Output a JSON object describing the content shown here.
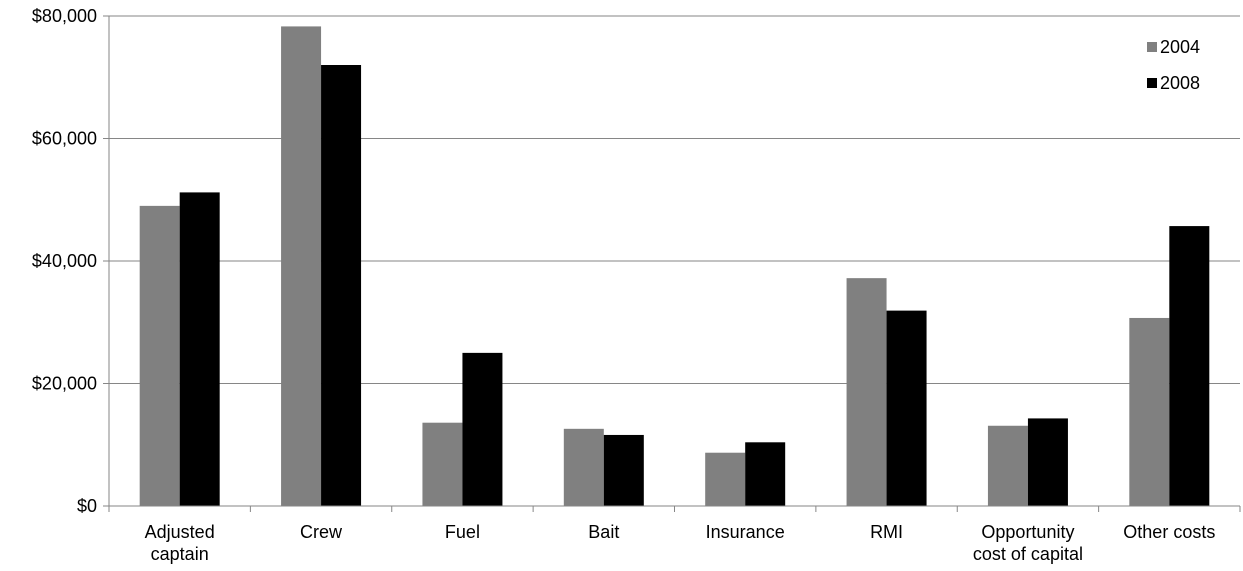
{
  "chart_data": {
    "type": "bar",
    "categories": [
      [
        "Adjusted",
        "captain"
      ],
      [
        "Crew"
      ],
      [
        "Fuel"
      ],
      [
        "Bait"
      ],
      [
        "Insurance"
      ],
      [
        "RMI"
      ],
      [
        "Opportunity",
        "cost of capital"
      ],
      [
        "Other costs"
      ]
    ],
    "series": [
      {
        "name": "2004",
        "color": "#808080",
        "values": [
          49000,
          78300,
          13600,
          12600,
          8700,
          37200,
          13100,
          30700
        ]
      },
      {
        "name": "2008",
        "color": "#000000",
        "values": [
          51200,
          72000,
          25000,
          11600,
          10400,
          31900,
          14300,
          45700
        ]
      }
    ],
    "ylim": [
      0,
      80000
    ],
    "yticks": [
      0,
      20000,
      40000,
      60000,
      80000
    ],
    "ytick_labels": [
      "$0",
      "$20,000",
      "$40,000",
      "$60,000",
      "$80,000"
    ],
    "grid": true,
    "legend_position": "top-right",
    "title": "",
    "xlabel": "",
    "ylabel": ""
  }
}
